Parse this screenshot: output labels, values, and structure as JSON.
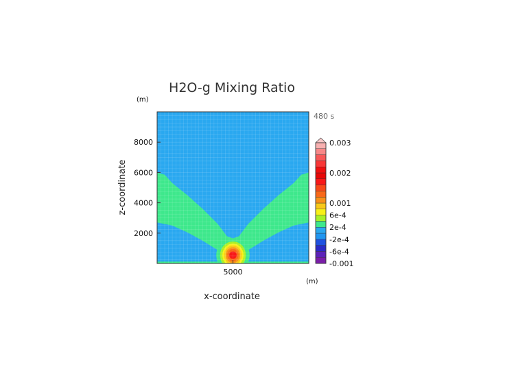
{
  "chart_data": {
    "type": "heatmap",
    "title": "H2O-g Mixing Ratio",
    "xlabel": "x-coordinate",
    "ylabel": "z-coordinate",
    "x_unit": "(m)",
    "y_unit": "(m)",
    "time_label": "480 s",
    "xlim": [
      0,
      10000
    ],
    "ylim": [
      0,
      10000
    ],
    "x_ticks": [
      5000
    ],
    "x_tick_labels": [
      "5000"
    ],
    "y_ticks": [
      2000,
      4000,
      6000,
      8000
    ],
    "y_tick_labels": [
      "2000",
      "4000",
      "6000",
      "8000"
    ],
    "grid": true,
    "background_color": "#2aa8f0",
    "colorbar": {
      "bounds": [
        -0.001,
        -0.0008,
        -0.0006,
        -0.0004,
        -0.0002,
        0,
        0.0002,
        0.0004,
        0.0006,
        0.0008,
        0.001,
        0.0012,
        0.0014,
        0.0016,
        0.0018,
        0.002,
        0.0022,
        0.0024,
        0.0026,
        0.0028,
        0.003
      ],
      "colors": [
        "#7a1ea8",
        "#5c22b8",
        "#2a2ac8",
        "#1f52e0",
        "#2196f0",
        "#2aa8f0",
        "#3ee88c",
        "#a8f028",
        "#f8f018",
        "#f8c818",
        "#f89018",
        "#f86818",
        "#f84818",
        "#f81818",
        "#e80808",
        "#f01010",
        "#f83838",
        "#f85858",
        "#f88888",
        "#f8b0b0"
      ],
      "extend": "max",
      "extend_color": "#f8c8c8",
      "tick_labels": [
        {
          "value": 0.003,
          "label": "0.003"
        },
        {
          "value": 0.002,
          "label": "0.002"
        },
        {
          "value": 0.001,
          "label": "0.001"
        },
        {
          "value": 0.0006,
          "label": "6e-4"
        },
        {
          "value": 0.0002,
          "label": "2e-4"
        },
        {
          "value": -0.0002,
          "label": "-2e-4"
        },
        {
          "value": -0.0006,
          "label": "-6e-4"
        },
        {
          "value": -0.001,
          "label": "-0.001"
        }
      ]
    },
    "regions": {
      "green_plume_lower_boundary": [
        [
          0,
          2700
        ],
        [
          1000,
          2500
        ],
        [
          2000,
          2050
        ],
        [
          3000,
          1500
        ],
        [
          3800,
          1000
        ],
        [
          4300,
          700
        ],
        [
          4700,
          950
        ],
        [
          5000,
          1050
        ],
        [
          5300,
          950
        ],
        [
          5700,
          700
        ],
        [
          6200,
          1000
        ],
        [
          7000,
          1500
        ],
        [
          8000,
          2050
        ],
        [
          9000,
          2500
        ],
        [
          10000,
          2700
        ]
      ],
      "green_plume_upper_boundary": [
        [
          0,
          6000
        ],
        [
          500,
          5850
        ],
        [
          1000,
          5300
        ],
        [
          2000,
          4500
        ],
        [
          3000,
          3600
        ],
        [
          4000,
          2600
        ],
        [
          4600,
          1800
        ],
        [
          5000,
          1650
        ],
        [
          5400,
          1800
        ],
        [
          6000,
          2600
        ],
        [
          7000,
          3600
        ],
        [
          8000,
          4500
        ],
        [
          9000,
          5300
        ],
        [
          9500,
          5850
        ],
        [
          10000,
          6000
        ]
      ],
      "surface_band_top": 120,
      "surface_band_color": "#3ee88c",
      "core": {
        "center_x": 5000,
        "center_z": 550,
        "shells": [
          {
            "color": "#3ee88c",
            "rx": 1100,
            "rz": 1100
          },
          {
            "color": "#a8f028",
            "rx": 850,
            "rz": 900
          },
          {
            "color": "#f8f018",
            "rx": 700,
            "rz": 760
          },
          {
            "color": "#f8c818",
            "rx": 580,
            "rz": 640
          },
          {
            "color": "#f89018",
            "rx": 470,
            "rz": 520
          },
          {
            "color": "#f86818",
            "rx": 370,
            "rz": 400
          },
          {
            "color": "#f81818",
            "rx": 250,
            "rz": 240
          }
        ]
      }
    }
  }
}
